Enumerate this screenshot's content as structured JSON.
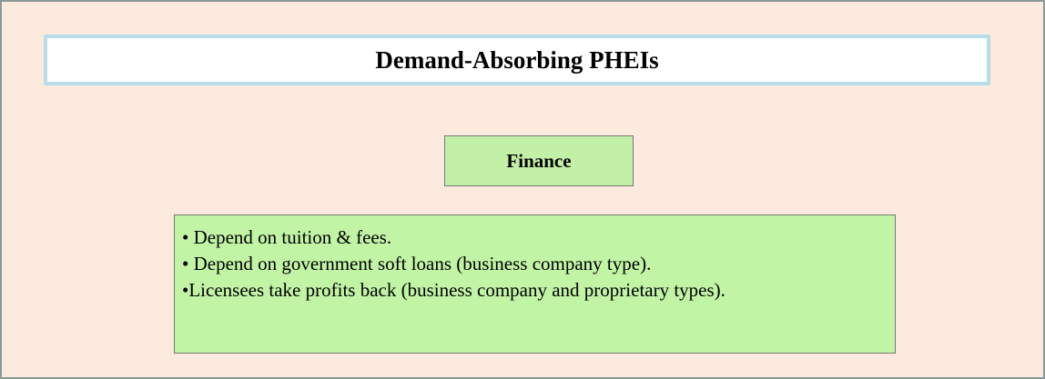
{
  "header": {
    "title": "Demand-Absorbing PHEIs"
  },
  "section": {
    "title": "Finance"
  },
  "bullets": [
    "• Depend on tuition & fees.",
    "• Depend on government soft loans (business company type).",
    "•Licensees take profits back (business company  and proprietary types)."
  ]
}
